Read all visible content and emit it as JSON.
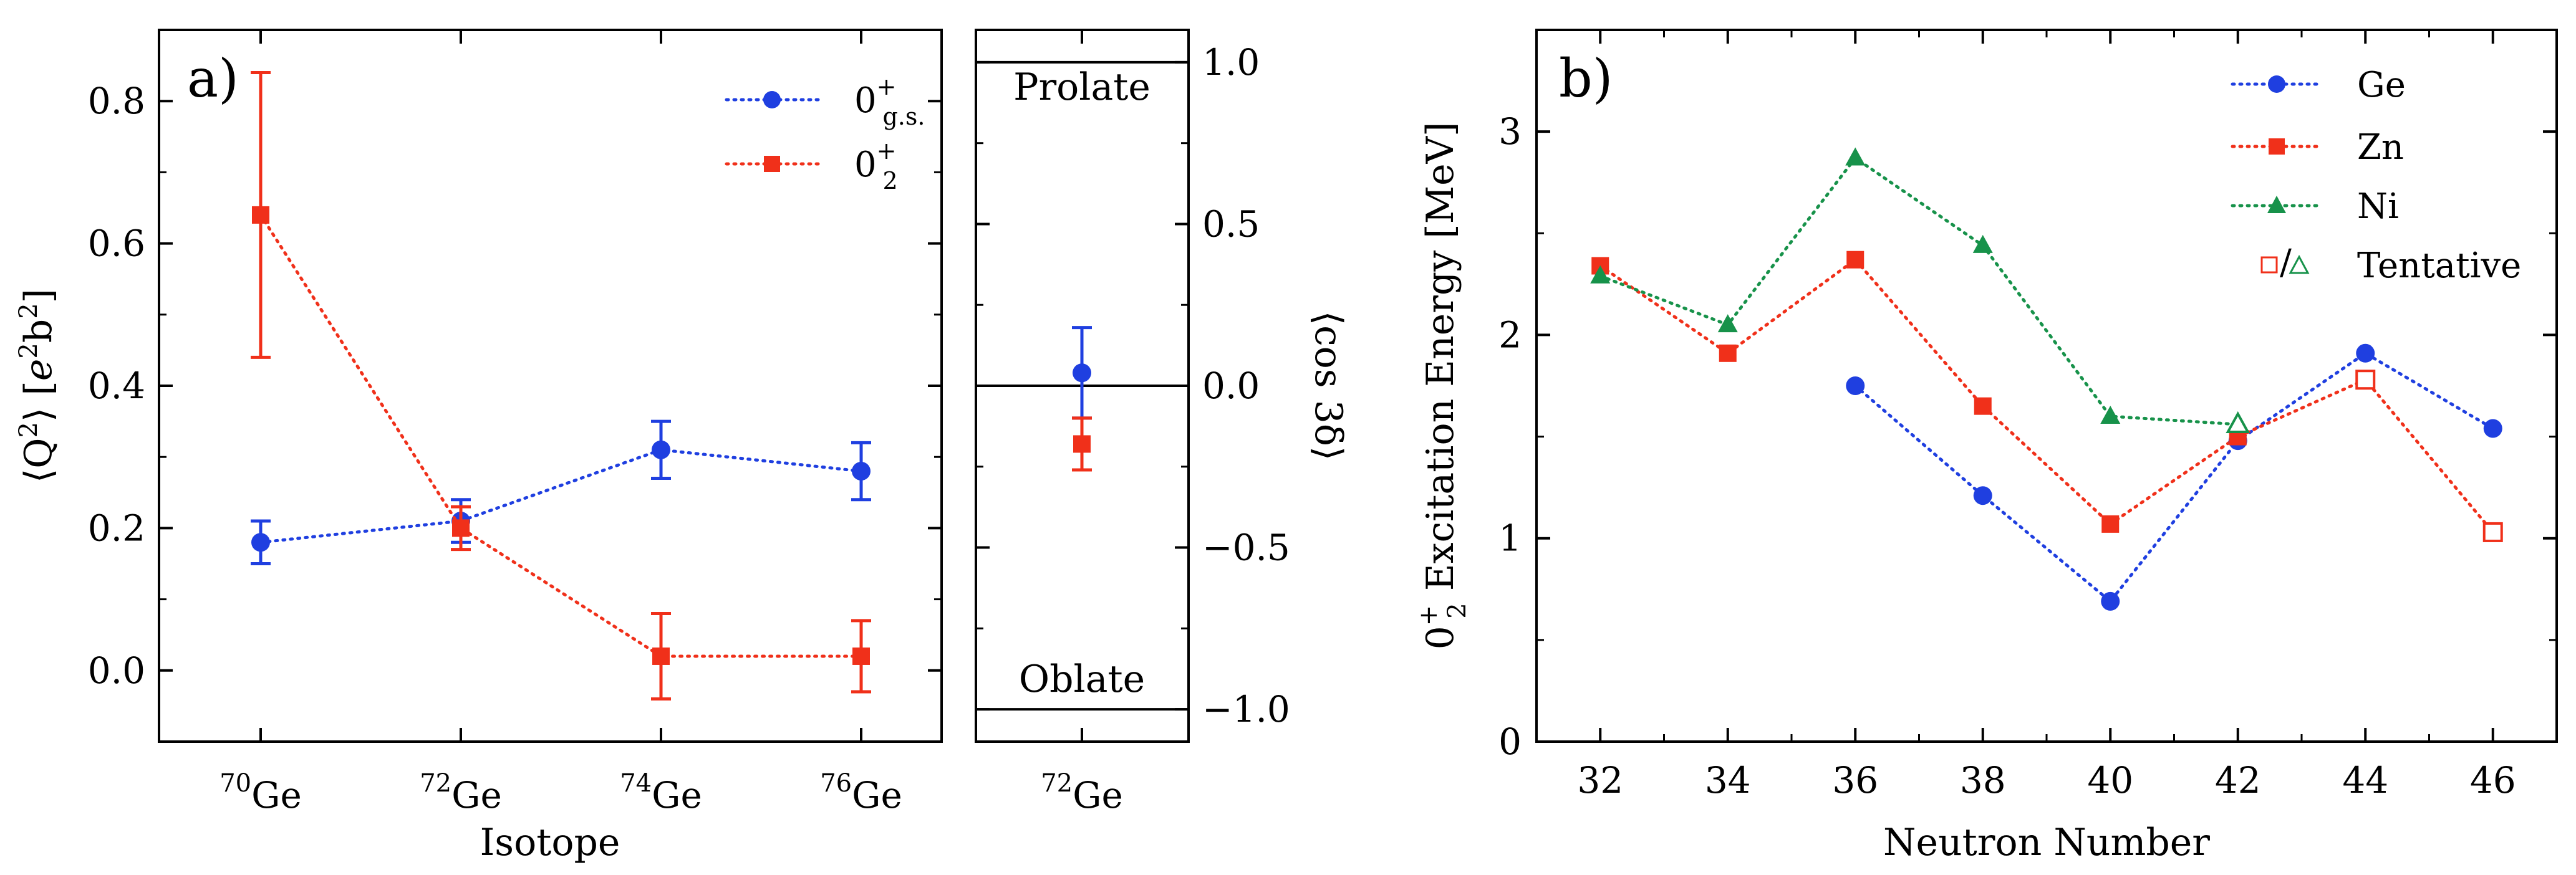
{
  "chart_data": [
    {
      "type": "line",
      "panel_label": "a)",
      "title": "",
      "xlabel": "Isotope",
      "ylabel": "⟨Q",
      "ylabel_sup1": "2",
      "ylabel_mid": "⟩ [",
      "ylabel_e": "e",
      "ylabel_sup2": "2",
      "ylabel_b": "b",
      "ylabel_sup3": "2",
      "ylabel_end": "]",
      "categories": [
        {
          "mass": "70",
          "el": "Ge"
        },
        {
          "mass": "72",
          "el": "Ge"
        },
        {
          "mass": "74",
          "el": "Ge"
        },
        {
          "mass": "76",
          "el": "Ge"
        }
      ],
      "ylim": [
        -0.1,
        0.9
      ],
      "yticks": [
        "0.0",
        "0.2",
        "0.4",
        "0.6",
        "0.8"
      ],
      "ytick_values": [
        0.0,
        0.2,
        0.4,
        0.6,
        0.8
      ],
      "series": [
        {
          "name": "0",
          "name_sup": "+",
          "name_sub": "g.s.",
          "color": "#1f3fe0",
          "marker": "circle",
          "values": [
            0.18,
            0.21,
            0.31,
            0.28
          ],
          "errors": [
            0.03,
            0.03,
            0.04,
            0.04
          ]
        },
        {
          "name": "0",
          "name_sup": "+",
          "name_sub": "2",
          "color": "#f0301a",
          "marker": "square",
          "values": [
            0.64,
            0.2,
            0.02,
            0.02
          ],
          "errors": [
            0.2,
            0.03,
            0.06,
            0.05
          ]
        }
      ],
      "legend_position": "top-right"
    },
    {
      "type": "scatter",
      "title": "",
      "xlabel": "",
      "ylabel": "⟨cos 3δ⟩",
      "category": {
        "mass": "72",
        "el": "Ge"
      },
      "ylim": [
        -1.1,
        1.1
      ],
      "yticks": [
        "−1.0",
        "−0.5",
        "0.0",
        "0.5",
        "1.0"
      ],
      "ytick_values": [
        -1.0,
        -0.5,
        0.0,
        0.5,
        1.0
      ],
      "reference_lines": [
        {
          "value": 1.0,
          "label": "Prolate"
        },
        {
          "value": 0.0,
          "label": ""
        },
        {
          "value": -1.0,
          "label": "Oblate"
        }
      ],
      "series": [
        {
          "name": "g.s.",
          "color": "#1f3fe0",
          "marker": "circle",
          "values": [
            0.04
          ],
          "errors": [
            0.14
          ]
        },
        {
          "name": "0+2",
          "color": "#f0301a",
          "marker": "square",
          "values": [
            -0.18
          ],
          "errors": [
            0.08
          ]
        }
      ]
    },
    {
      "type": "line",
      "panel_label": "b)",
      "title": "",
      "xlabel": "Neutron Number",
      "ylabel_pre": "0",
      "ylabel_sup": "+",
      "ylabel_sub": "2",
      "ylabel_rest": " Excitation Energy [MeV]",
      "x": [
        32,
        34,
        36,
        38,
        40,
        42,
        44,
        46
      ],
      "xticks": [
        "32",
        "34",
        "36",
        "38",
        "40",
        "42",
        "44",
        "46"
      ],
      "xlim": [
        31,
        47
      ],
      "ylim": [
        0,
        3.5
      ],
      "yticks": [
        "0",
        "1",
        "2",
        "3"
      ],
      "ytick_values": [
        0,
        1,
        2,
        3
      ],
      "series": [
        {
          "name": "Ge",
          "color": "#1f3fe0",
          "marker": "circle",
          "points": [
            [
              36,
              1.75
            ],
            [
              38,
              1.21
            ],
            [
              40,
              0.69
            ],
            [
              42,
              1.48
            ],
            [
              44,
              1.91
            ],
            [
              46,
              1.54
            ]
          ],
          "tentative": []
        },
        {
          "name": "Zn",
          "color": "#f0301a",
          "marker": "square",
          "points": [
            [
              32,
              2.34
            ],
            [
              34,
              1.91
            ],
            [
              36,
              2.37
            ],
            [
              38,
              1.65
            ],
            [
              40,
              1.07
            ],
            [
              42,
              1.5
            ],
            [
              44,
              1.78
            ],
            [
              46,
              1.03
            ]
          ],
          "tentative": [
            44,
            46
          ]
        },
        {
          "name": "Ni",
          "color": "#17924a",
          "marker": "triangle",
          "points": [
            [
              32,
              2.29
            ],
            [
              34,
              2.05
            ],
            [
              36,
              2.87
            ],
            [
              38,
              2.44
            ],
            [
              40,
              1.6
            ],
            [
              42,
              1.56
            ]
          ],
          "tentative": [
            42
          ]
        }
      ],
      "tentative_label": "Tentative",
      "tentative_sep": "/",
      "legend_position": "top-right"
    }
  ]
}
